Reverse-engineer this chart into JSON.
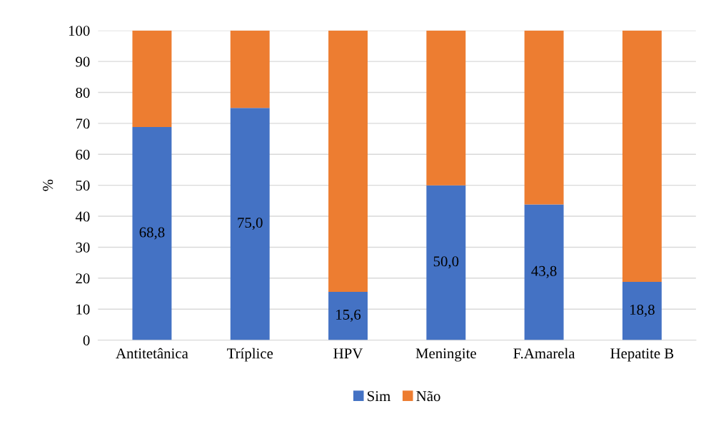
{
  "chart_data": {
    "type": "bar",
    "stacked": true,
    "ylabel": "%",
    "categories": [
      "Antitetânica",
      "Tríplice",
      "HPV",
      "Meningite",
      "F.Amarela",
      "Hepatite B"
    ],
    "series": [
      {
        "name": "Sim",
        "color": "#4472c4",
        "values": [
          68.8,
          75.0,
          15.6,
          50.0,
          43.8,
          18.8
        ],
        "value_labels": [
          "68,8",
          "75,0",
          "15,6",
          "50,0",
          "43,8",
          "18,8"
        ]
      },
      {
        "name": "Não",
        "color": "#ed7d31",
        "values": [
          31.2,
          25.0,
          84.4,
          50.0,
          56.2,
          81.2
        ]
      }
    ],
    "ylim": [
      0,
      100
    ],
    "yticks": [
      0,
      10,
      20,
      30,
      40,
      50,
      60,
      70,
      80,
      90,
      100
    ],
    "grid": "y",
    "legend": "bottom"
  }
}
